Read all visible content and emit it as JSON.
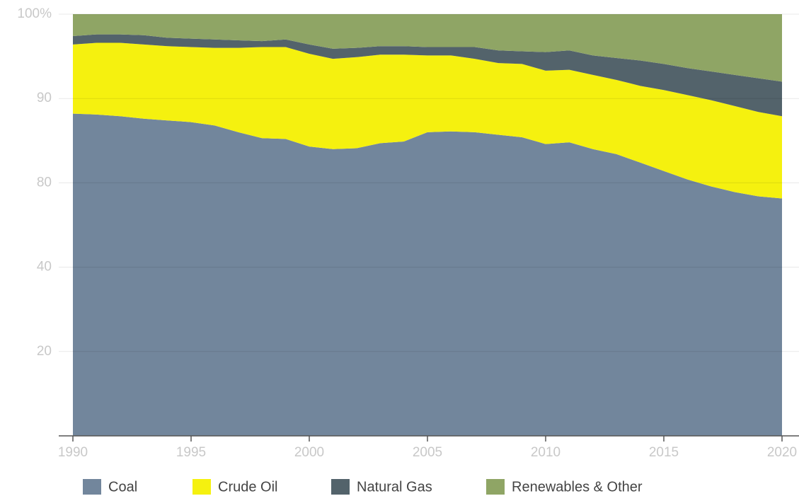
{
  "chart_data": {
    "type": "stacked_area",
    "x": [
      1990,
      1991,
      1992,
      1993,
      1994,
      1995,
      1996,
      1997,
      1998,
      1999,
      2000,
      2001,
      2002,
      2003,
      2004,
      2005,
      2006,
      2007,
      2008,
      2009,
      2010,
      2011,
      2012,
      2013,
      2014,
      2015,
      2016,
      2017,
      2018,
      2019,
      2020
    ],
    "series": [
      {
        "name": "Coal",
        "color": "#72869c",
        "values": [
          88.2,
          88.1,
          87.9,
          87.6,
          87.4,
          87.2,
          86.8,
          86.0,
          85.3,
          85.2,
          84.3,
          84.0,
          84.1,
          84.7,
          84.9,
          86.0,
          86.1,
          86.0,
          85.7,
          85.4,
          84.6,
          84.8,
          84.0,
          83.4,
          82.4,
          81.4,
          80.4,
          78.3,
          75.6,
          73.6,
          72.6
        ]
      },
      {
        "name": "Crude Oil",
        "color": "#f5f10f",
        "values": [
          8.2,
          8.5,
          8.7,
          8.8,
          8.8,
          8.9,
          9.2,
          10.0,
          10.8,
          10.9,
          11.0,
          10.7,
          10.8,
          10.5,
          10.3,
          9.1,
          9.0,
          8.7,
          8.5,
          8.7,
          8.7,
          8.6,
          8.8,
          8.8,
          9.1,
          9.6,
          10.0,
          11.5,
          13.5,
          14.8,
          15.3
        ]
      },
      {
        "name": "Natural Gas",
        "color": "#53636b",
        "values": [
          1.0,
          1.0,
          1.0,
          1.1,
          1.0,
          1.0,
          1.0,
          0.9,
          0.7,
          0.9,
          1.1,
          1.2,
          1.1,
          1.0,
          1.0,
          1.0,
          1.0,
          1.4,
          1.5,
          1.5,
          2.2,
          2.3,
          2.3,
          2.6,
          3.0,
          3.1,
          3.2,
          3.4,
          3.7,
          4.0,
          4.1
        ]
      },
      {
        "name": "Renewables & Other",
        "color": "#8fa565",
        "values": [
          2.6,
          2.4,
          2.4,
          2.5,
          2.8,
          2.9,
          3.0,
          3.1,
          3.2,
          3.0,
          3.6,
          4.1,
          4.0,
          3.8,
          3.8,
          3.9,
          3.9,
          3.9,
          4.3,
          4.4,
          4.5,
          4.3,
          4.9,
          5.2,
          5.5,
          5.9,
          6.4,
          6.8,
          7.2,
          7.6,
          8.0
        ]
      }
    ],
    "xlim": [
      1990,
      2020
    ],
    "xticks": [
      1990,
      1995,
      2000,
      2005,
      2010,
      2015,
      2020
    ],
    "ylim": [
      0,
      100
    ],
    "yticks": [
      20,
      40,
      80,
      90,
      {
        "value": 100,
        "label": "100%"
      }
    ],
    "grid": true,
    "legend": "bottom"
  }
}
